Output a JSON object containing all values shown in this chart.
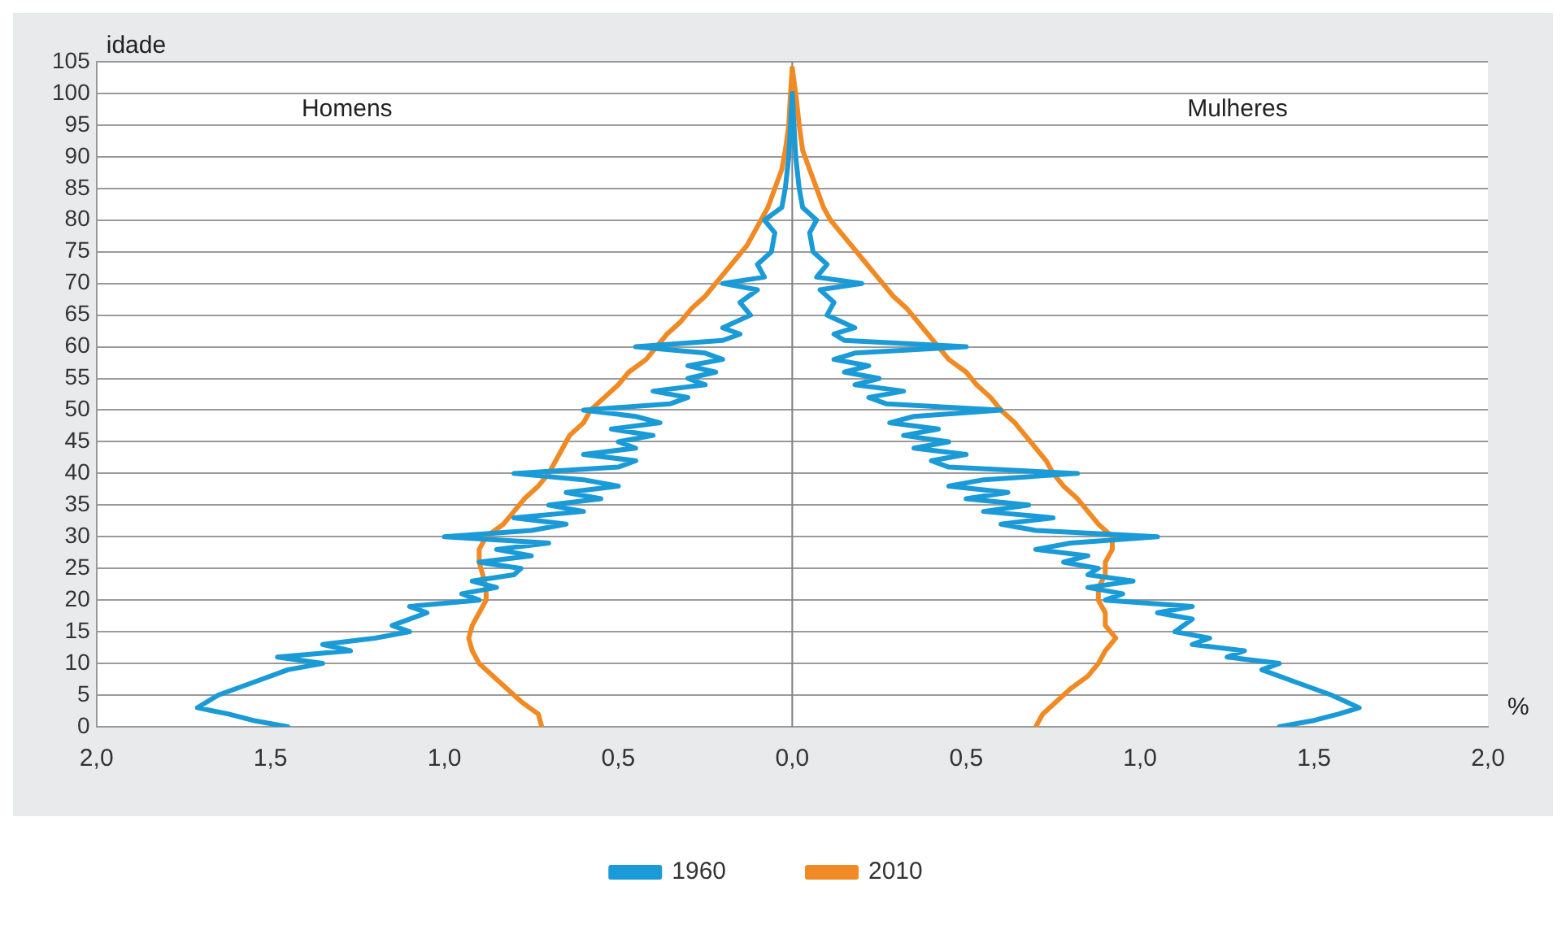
{
  "chart_data": {
    "type": "line",
    "xlabel": "%",
    "ylabel": "idade",
    "annotations": [
      "Homens",
      "Mulheres"
    ],
    "xlim": [
      -2,
      2
    ],
    "xticks": [
      {
        "value": -2,
        "label": "2,0"
      },
      {
        "value": -1.5,
        "label": "1,5"
      },
      {
        "value": -1,
        "label": "1,0"
      },
      {
        "value": -0.5,
        "label": "0,5"
      },
      {
        "value": 0,
        "label": "0,0"
      },
      {
        "value": 0.5,
        "label": "0,5"
      },
      {
        "value": 1,
        "label": "1,0"
      },
      {
        "value": 1.5,
        "label": "1,5"
      },
      {
        "value": 2,
        "label": "2,0"
      }
    ],
    "ylim": [
      0,
      105
    ],
    "yticks": [
      0,
      5,
      10,
      15,
      20,
      25,
      30,
      35,
      40,
      45,
      50,
      55,
      60,
      65,
      70,
      75,
      80,
      85,
      90,
      95,
      100,
      105
    ],
    "grid": "y",
    "legend": "bottom",
    "marker": "none",
    "line_style": "solid",
    "ref_lines": [
      {
        "axis": "x",
        "value": 0,
        "color": "#808080"
      }
    ],
    "series": [
      {
        "name": "1960",
        "color": "#1a9ad6",
        "values": [
          0,
          1,
          2,
          3,
          5,
          7,
          9,
          10,
          11,
          12,
          13,
          14,
          15,
          16,
          18,
          19,
          20,
          21,
          22,
          23,
          24,
          25,
          26,
          27,
          28,
          29,
          30,
          31,
          32,
          33,
          34,
          35,
          36,
          37,
          38,
          39,
          40,
          41,
          42,
          43,
          44,
          45,
          46,
          47,
          48,
          49,
          50,
          51,
          52,
          53,
          54,
          55,
          56,
          57,
          58,
          59,
          60,
          61,
          62,
          63,
          65,
          67,
          69,
          70,
          71,
          73,
          75,
          78,
          80,
          82,
          85,
          90,
          95,
          100
        ],
        "x": [
          -1.45,
          -1.55,
          -1.62,
          -1.71,
          -1.65,
          -1.55,
          -1.45,
          -1.35,
          -1.48,
          -1.27,
          -1.35,
          -1.2,
          -1.1,
          -1.15,
          -1.05,
          -1.1,
          -0.9,
          -0.95,
          -0.85,
          -0.92,
          -0.8,
          -0.78,
          -0.9,
          -0.75,
          -0.85,
          -0.7,
          -1.0,
          -0.75,
          -0.65,
          -0.8,
          -0.6,
          -0.7,
          -0.55,
          -0.65,
          -0.5,
          -0.6,
          -0.8,
          -0.5,
          -0.45,
          -0.6,
          -0.45,
          -0.5,
          -0.4,
          -0.52,
          -0.38,
          -0.45,
          -0.6,
          -0.35,
          -0.3,
          -0.4,
          -0.25,
          -0.3,
          -0.22,
          -0.3,
          -0.2,
          -0.25,
          -0.45,
          -0.2,
          -0.15,
          -0.2,
          -0.12,
          -0.15,
          -0.1,
          -0.2,
          -0.08,
          -0.1,
          -0.06,
          -0.05,
          -0.08,
          -0.03,
          -0.02,
          -0.01,
          -0.005,
          0
        ]
      },
      {
        "name": "2010",
        "color": "#f08a24",
        "values": [
          0,
          2,
          4,
          6,
          8,
          10,
          12,
          14,
          16,
          18,
          20,
          22,
          24,
          26,
          28,
          30,
          32,
          34,
          36,
          38,
          40,
          42,
          44,
          46,
          48,
          50,
          52,
          54,
          56,
          58,
          60,
          62,
          64,
          66,
          68,
          70,
          72,
          74,
          76,
          78,
          80,
          82,
          85,
          88,
          91,
          95,
          100,
          104
        ],
        "x": [
          -0.72,
          -0.73,
          -0.78,
          -0.82,
          -0.86,
          -0.9,
          -0.92,
          -0.93,
          -0.92,
          -0.9,
          -0.88,
          -0.88,
          -0.89,
          -0.9,
          -0.9,
          -0.88,
          -0.83,
          -0.8,
          -0.77,
          -0.73,
          -0.7,
          -0.68,
          -0.66,
          -0.64,
          -0.6,
          -0.58,
          -0.54,
          -0.5,
          -0.47,
          -0.42,
          -0.39,
          -0.36,
          -0.32,
          -0.29,
          -0.25,
          -0.22,
          -0.19,
          -0.16,
          -0.13,
          -0.11,
          -0.09,
          -0.07,
          -0.05,
          -0.03,
          -0.02,
          -0.01,
          -0.005,
          0
        ]
      },
      {
        "color": "#1a9ad6",
        "values": [
          0,
          1,
          2,
          3,
          5,
          7,
          9,
          10,
          11,
          12,
          13,
          14,
          15,
          17,
          18,
          19,
          20,
          21,
          22,
          23,
          24,
          25,
          26,
          27,
          28,
          29,
          30,
          31,
          32,
          33,
          34,
          35,
          36,
          37,
          38,
          39,
          40,
          41,
          42,
          43,
          44,
          45,
          46,
          47,
          48,
          49,
          50,
          51,
          52,
          53,
          54,
          55,
          56,
          57,
          58,
          59,
          60,
          61,
          62,
          63,
          65,
          67,
          69,
          70,
          71,
          73,
          75,
          78,
          80,
          82,
          85,
          90,
          95,
          100
        ],
        "x": [
          1.4,
          1.5,
          1.57,
          1.63,
          1.55,
          1.45,
          1.35,
          1.4,
          1.25,
          1.3,
          1.15,
          1.2,
          1.1,
          1.15,
          1.05,
          1.15,
          0.9,
          0.95,
          0.85,
          0.98,
          0.85,
          0.88,
          0.78,
          0.85,
          0.7,
          0.8,
          1.05,
          0.7,
          0.6,
          0.75,
          0.55,
          0.68,
          0.5,
          0.62,
          0.45,
          0.55,
          0.82,
          0.45,
          0.4,
          0.5,
          0.35,
          0.45,
          0.32,
          0.42,
          0.28,
          0.35,
          0.6,
          0.27,
          0.22,
          0.32,
          0.18,
          0.25,
          0.15,
          0.22,
          0.12,
          0.18,
          0.5,
          0.15,
          0.12,
          0.18,
          0.1,
          0.12,
          0.08,
          0.2,
          0.07,
          0.1,
          0.06,
          0.05,
          0.07,
          0.03,
          0.02,
          0.01,
          0.005,
          0
        ]
      },
      {
        "color": "#f08a24",
        "values": [
          0,
          2,
          4,
          6,
          8,
          10,
          12,
          14,
          16,
          18,
          20,
          22,
          24,
          26,
          28,
          30,
          32,
          34,
          36,
          38,
          40,
          42,
          44,
          46,
          48,
          50,
          52,
          54,
          56,
          58,
          60,
          62,
          64,
          66,
          68,
          70,
          72,
          74,
          76,
          78,
          80,
          82,
          85,
          88,
          91,
          95,
          100,
          104
        ],
        "x": [
          0.7,
          0.72,
          0.76,
          0.8,
          0.85,
          0.88,
          0.9,
          0.93,
          0.9,
          0.9,
          0.88,
          0.88,
          0.9,
          0.9,
          0.92,
          0.92,
          0.88,
          0.85,
          0.82,
          0.78,
          0.75,
          0.73,
          0.7,
          0.67,
          0.64,
          0.6,
          0.57,
          0.53,
          0.5,
          0.45,
          0.42,
          0.39,
          0.36,
          0.33,
          0.29,
          0.26,
          0.23,
          0.2,
          0.17,
          0.14,
          0.11,
          0.09,
          0.07,
          0.05,
          0.03,
          0.02,
          0.01,
          0
        ]
      }
    ]
  }
}
